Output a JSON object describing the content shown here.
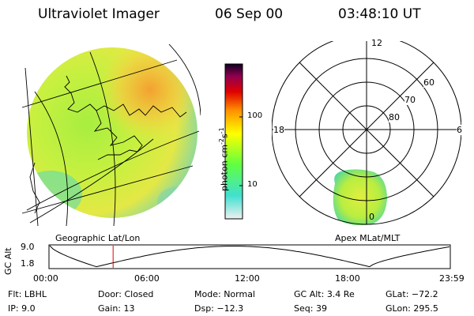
{
  "header": {
    "instrument": "Ultraviolet Imager",
    "date": "06 Sep 00",
    "time": "03:48:10 UT"
  },
  "colorbar": {
    "unit_prefix": "photon cm",
    "unit_exp1": "-2",
    "unit_mid": "s",
    "unit_exp2": "-1",
    "ticks": [
      "100",
      "10"
    ]
  },
  "polar_plot": {
    "mlt_labels": {
      "top": "12",
      "left": "18",
      "right": "6",
      "bottom": "0"
    },
    "lat_labels": [
      "60",
      "70",
      "80"
    ]
  },
  "panel_labels": {
    "left": "Geographic Lat/Lon",
    "right": "Apex  MLat/MLT"
  },
  "timeline": {
    "ylabel": "GC Alt",
    "ymax": "9.0",
    "ymin": "1.8",
    "ticks": [
      "00:00",
      "06:00",
      "12:00",
      "18:00",
      "23:59"
    ],
    "current_time_hours": 3.803
  },
  "info": {
    "flt": {
      "label": "Flt:",
      "value": "LBHL"
    },
    "ip": {
      "label": "IP:",
      "value": "9.0"
    },
    "door": {
      "label": "Door:",
      "value": "Closed"
    },
    "gain": {
      "label": "Gain:",
      "value": "13"
    },
    "mode": {
      "label": "Mode:",
      "value": "Normal"
    },
    "dsp": {
      "label": "Dsp:",
      "value": "−12.3"
    },
    "gcalt": {
      "label": "GC Alt:",
      "value": "3.4 Re"
    },
    "seq": {
      "label": "Seq:",
      "value": "39"
    },
    "glat": {
      "label": "GLat:",
      "value": "−72.2"
    },
    "glon": {
      "label": "GLon:",
      "value": "295.5"
    }
  },
  "colors": {
    "colorbar_stops": [
      "#f0f0f0",
      "#40e0d0",
      "#60ff40",
      "#ffff00",
      "#ff9000",
      "#e00000",
      "#900050",
      "#100020"
    ],
    "timeline_marker": "#e00000"
  }
}
